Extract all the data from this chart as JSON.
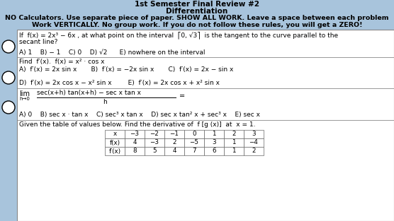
{
  "title1": "1st Semester Final Review #2",
  "title2": "Differentiation",
  "instr1": "NO Calculators. Use separate piece of paper. SHOW ALL WORK. Leave a space between each problem",
  "instr2": "Work VERTICALLY. No group work. If you do not follow these rules, you will get a ZERO!",
  "bg_color": "#a8c4dc",
  "white": "#ffffff",
  "q1_line1": "If  f(x) = 2x³ − 6x , at what point on the interval  ⎡0, √3⎤  is the tangent to the curve parallel to the",
  "q1_line2": "secant line?",
  "q1_blank": "",
  "q1_ans": "A) 1    B) − 1    C) 0    D) √2      E) nowhere on the interval",
  "q2_head": "Find  f′(x).  f(x) = x² · cos x",
  "q2_ans_top": "A)  f′(x) = 2x sin x       B)  f′(x) = −2x sin x       C)  f′(x) = 2x − sin x",
  "q2_ans_bot": "D)  f′(x) = 2x cos x − x² sin x        E)  f′(x) = 2x cos x + x² sin x",
  "q3_lim": "lim",
  "q3_sub": "h→0",
  "q3_num": "sec(x+h) tan(x+h) − sec x tan x",
  "q3_den": "h",
  "q3_eq": "=",
  "q3_ans": "A) 0    B) sec x · tan x    C) sec³ x tan x    D) sec x tan² x + sec³ x    E) sec x",
  "q4_head": "Given the table of values below. Find the derivative of  f [g (x)]  at  x = 1.",
  "tbl_r0": [
    "x",
    "−3",
    "−2",
    "−1",
    "0",
    "1",
    "2",
    "3"
  ],
  "tbl_r1": [
    "f(x)",
    "4",
    "−3",
    "2",
    "−5",
    "3",
    "1",
    "−4"
  ],
  "tbl_r2": [
    "f′(x)",
    "8",
    "5",
    "4",
    "7",
    "6",
    "1",
    "2"
  ]
}
